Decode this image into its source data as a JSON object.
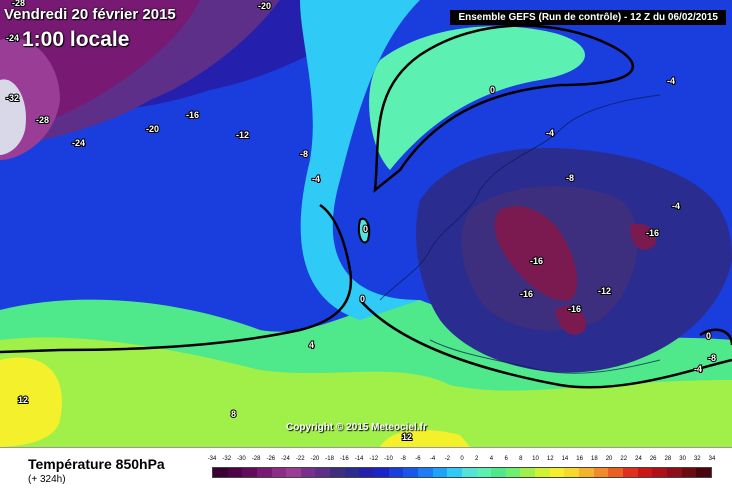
{
  "header": {
    "date": "Vendredi 20 février 2015",
    "time": "1:00 locale",
    "run": "Ensemble GEFS  (Run de contrôle)  - 12 Z du 06/02/2015"
  },
  "footer": {
    "parameter": "Température 850hPa",
    "lead_time": "(+ 324h)",
    "copyright": "Copyright © 2015 Meteociel.fr"
  },
  "scale": {
    "ticks": [
      "-34",
      "-32",
      "-30",
      "-28",
      "-26",
      "-24",
      "-22",
      "-20",
      "-18",
      "-16",
      "-14",
      "-12",
      "-10",
      "-8",
      "-6",
      "-4",
      "-2",
      "0",
      "2",
      "4",
      "6",
      "8",
      "10",
      "12",
      "14",
      "16",
      "18",
      "20",
      "22",
      "24",
      "26",
      "28",
      "30",
      "32",
      "34"
    ],
    "colors": [
      "#3a0035",
      "#4e0048",
      "#630a5e",
      "#781a73",
      "#8c2c86",
      "#9a3d96",
      "#7a2f8d",
      "#5e2f88",
      "#3d2f7e",
      "#2b2c90",
      "#2420ad",
      "#1a25c8",
      "#1a3ddd",
      "#1757ea",
      "#1c7bf5",
      "#1fa2f9",
      "#2fcaf5",
      "#53e3d9",
      "#5cf0b3",
      "#4fe88a",
      "#6ef06e",
      "#a0f049",
      "#cff233",
      "#f4f12c",
      "#f7d92c",
      "#f5b22c",
      "#f18a28",
      "#ec5f22",
      "#e0301d",
      "#cc1616",
      "#b00f18",
      "#8f0d18",
      "#6c0a12",
      "#4a050c"
    ]
  },
  "map_labels": [
    {
      "text": "-28",
      "kind": "contour"
    },
    {
      "text": "-20",
      "kind": "contour"
    },
    {
      "text": "-24",
      "kind": "contour"
    },
    {
      "text": "-32",
      "kind": "contour"
    },
    {
      "text": "-28",
      "kind": "contour"
    },
    {
      "text": "-24",
      "kind": "contour"
    },
    {
      "text": "-20",
      "kind": "contour"
    },
    {
      "text": "-16",
      "kind": "contour"
    },
    {
      "text": "-12",
      "kind": "contour"
    },
    {
      "text": "-8",
      "kind": "contour"
    },
    {
      "text": "-4",
      "kind": "contour"
    },
    {
      "text": "0",
      "kind": "contour"
    },
    {
      "text": "0",
      "kind": "contour"
    },
    {
      "text": "0",
      "kind": "contour"
    },
    {
      "text": "4",
      "kind": "contour"
    },
    {
      "text": "8",
      "kind": "contour"
    },
    {
      "text": "12",
      "kind": "contour"
    },
    {
      "text": "12",
      "kind": "contour"
    },
    {
      "text": "-4",
      "kind": "contour"
    },
    {
      "text": "-4",
      "kind": "contour"
    },
    {
      "text": "-8",
      "kind": "contour"
    },
    {
      "text": "-4",
      "kind": "contour"
    },
    {
      "text": "-16",
      "kind": "contour"
    },
    {
      "text": "-16",
      "kind": "contour"
    },
    {
      "text": "-16",
      "kind": "contour"
    },
    {
      "text": "-16",
      "kind": "contour"
    },
    {
      "text": "-12",
      "kind": "contour"
    },
    {
      "text": "0",
      "kind": "contour"
    },
    {
      "text": "-8",
      "kind": "contour"
    },
    {
      "text": "-4",
      "kind": "contour"
    }
  ]
}
